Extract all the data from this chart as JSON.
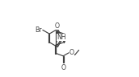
{
  "bg_color": "#ffffff",
  "line_color": "#404040",
  "text_color": "#404040",
  "line_width": 0.85,
  "font_size": 5.6,
  "figsize": [
    1.72,
    0.96
  ],
  "dpi": 100,
  "xlim": [
    -1.5,
    10.5
  ],
  "ylim": [
    -0.5,
    6.5
  ]
}
